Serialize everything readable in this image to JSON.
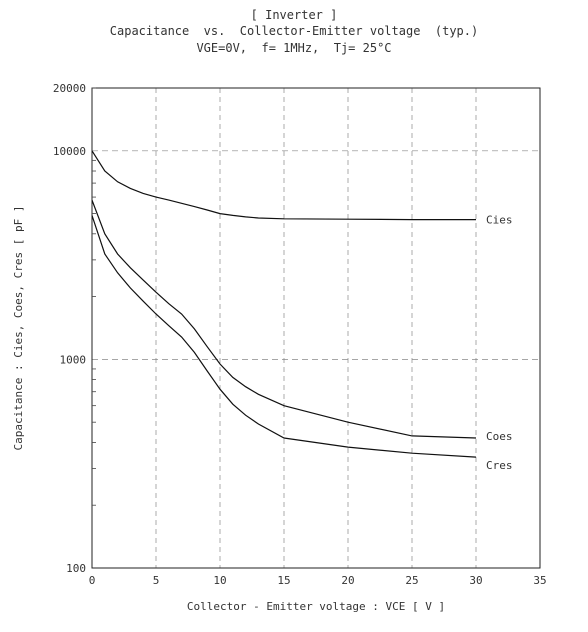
{
  "chart_data": {
    "type": "line",
    "title": "[ Inverter ]",
    "subtitle": "Capacitance  vs.  Collector-Emitter voltage  (typ.)",
    "conditions": "VGE=0V,  f= 1MHz,  Tj= 25°C",
    "xlabel": "Collector - Emitter voltage  :  VCE  [ V ]",
    "ylabel": "Capacitance  :  Cies, Coes, Cres  [ pF ]",
    "xlim": [
      0,
      35
    ],
    "ylim": [
      100,
      20000
    ],
    "yscale": "log",
    "xticks": [
      0,
      5,
      10,
      15,
      20,
      25,
      30,
      35
    ],
    "xtick_labels": [
      "0",
      "5",
      "10",
      "15",
      "20",
      "25",
      "30",
      "35"
    ],
    "yticks": [
      100,
      1000,
      10000,
      20000
    ],
    "ytick_labels": [
      "100",
      "1000",
      "10000",
      "20000"
    ],
    "grid": true,
    "series": [
      {
        "name": "Cies",
        "x": [
          0,
          1,
          2,
          3,
          4,
          5,
          6,
          7,
          8,
          9,
          10,
          11,
          12,
          13,
          15,
          20,
          25,
          30
        ],
        "y": [
          10000,
          8000,
          7100,
          6600,
          6250,
          6000,
          5800,
          5600,
          5400,
          5200,
          5000,
          4900,
          4820,
          4760,
          4720,
          4700,
          4680,
          4680
        ]
      },
      {
        "name": "Coes",
        "x": [
          0,
          1,
          2,
          3,
          4,
          5,
          6,
          7,
          8,
          9,
          10,
          11,
          12,
          13,
          15,
          20,
          25,
          30
        ],
        "y": [
          5800,
          4000,
          3200,
          2750,
          2400,
          2100,
          1850,
          1650,
          1400,
          1150,
          950,
          820,
          740,
          680,
          600,
          500,
          430,
          420
        ]
      },
      {
        "name": "Cres",
        "x": [
          0,
          1,
          2,
          3,
          4,
          5,
          6,
          7,
          8,
          9,
          10,
          11,
          12,
          13,
          15,
          20,
          25,
          30
        ],
        "y": [
          4900,
          3200,
          2600,
          2200,
          1900,
          1650,
          1450,
          1280,
          1080,
          880,
          720,
          610,
          540,
          490,
          420,
          380,
          355,
          340
        ]
      }
    ]
  }
}
